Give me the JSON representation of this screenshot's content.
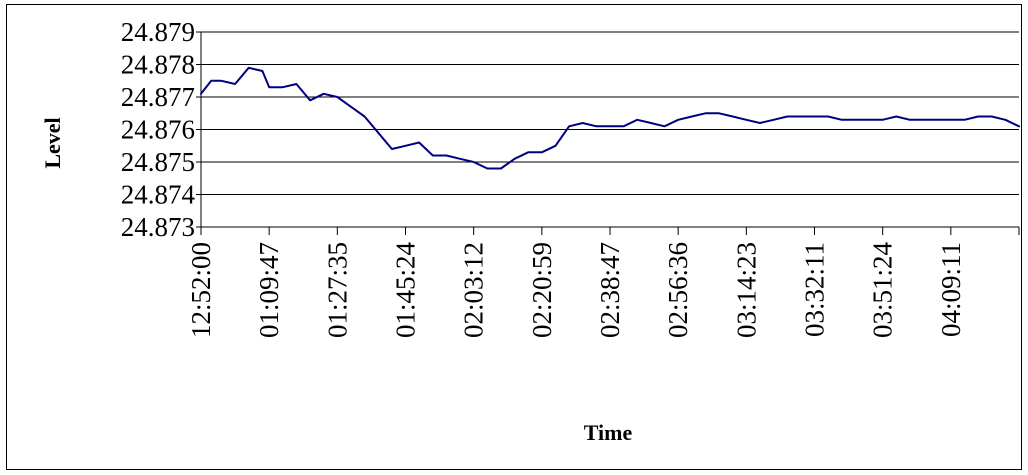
{
  "chart_data": {
    "type": "line",
    "title": "",
    "xlabel": "Time",
    "ylabel": "Level",
    "ylim": [
      24.873,
      24.879
    ],
    "yticks": [
      "24.879",
      "24.878",
      "24.877",
      "24.876",
      "24.875",
      "24.874",
      "24.873"
    ],
    "xticks": [
      "12:52:00",
      "01:09:47",
      "01:27:35",
      "01:45:24",
      "02:03:12",
      "02:20:59",
      "02:38:47",
      "02:56:36",
      "03:14:23",
      "03:32:11",
      "03:51:24",
      "04:09:11"
    ],
    "grid": "horizontal",
    "legend": "none",
    "line_color": "#000080",
    "series": [
      {
        "x": [
          0,
          0.15,
          0.3,
          0.5,
          0.7,
          0.9,
          1.0,
          1.2,
          1.4,
          1.6,
          1.8,
          2.0,
          2.2,
          2.4,
          2.6,
          2.8,
          3.0,
          3.2,
          3.4,
          3.6,
          3.8,
          4.0,
          4.2,
          4.4,
          4.6,
          4.8,
          5.0,
          5.2,
          5.4,
          5.6,
          5.8,
          6.0,
          6.2,
          6.4,
          6.6,
          6.8,
          7.0,
          7.2,
          7.4,
          7.6,
          7.8,
          8.0,
          8.2,
          8.4,
          8.6,
          8.8,
          9.0,
          9.2,
          9.4,
          9.6,
          9.8,
          10.0,
          10.2,
          10.4,
          10.6,
          10.8,
          11.0,
          11.2,
          11.4,
          11.6,
          11.8,
          12.0
        ],
        "values": [
          24.8771,
          24.8775,
          24.8775,
          24.8774,
          24.8779,
          24.8778,
          24.8773,
          24.8773,
          24.8774,
          24.8769,
          24.8771,
          24.877,
          24.8767,
          24.8764,
          24.8759,
          24.8754,
          24.8755,
          24.8756,
          24.8752,
          24.8752,
          24.8751,
          24.875,
          24.8748,
          24.8748,
          24.8751,
          24.8753,
          24.8753,
          24.8755,
          24.8761,
          24.8762,
          24.8761,
          24.8761,
          24.8761,
          24.8763,
          24.8762,
          24.8761,
          24.8763,
          24.8764,
          24.8765,
          24.8765,
          24.8764,
          24.8763,
          24.8762,
          24.8763,
          24.8764,
          24.8764,
          24.8764,
          24.8764,
          24.8763,
          24.8763,
          24.8763,
          24.8763,
          24.8764,
          24.8763,
          24.8763,
          24.8763,
          24.8763,
          24.8763,
          24.8764,
          24.8764,
          24.8763,
          24.8761
        ]
      }
    ]
  }
}
